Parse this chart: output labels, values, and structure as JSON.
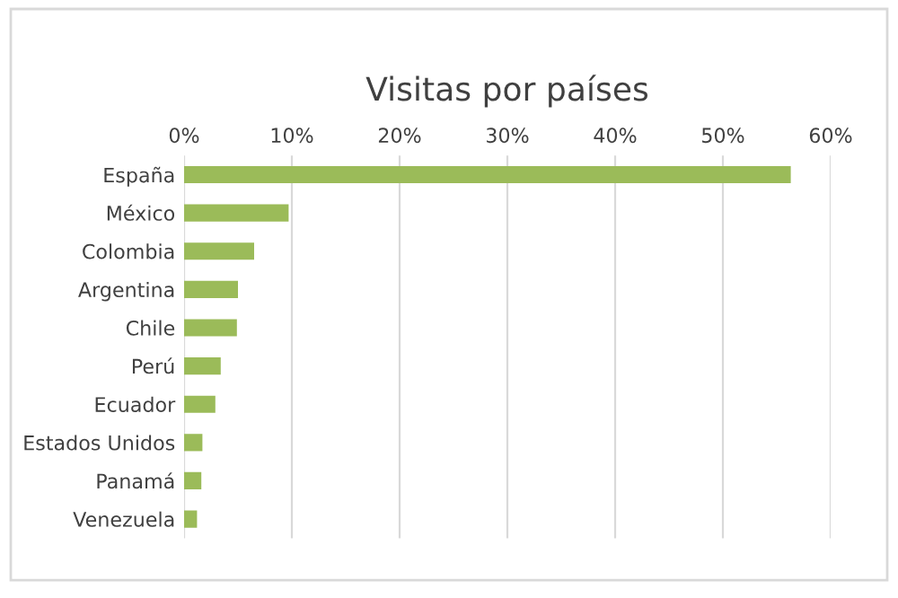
{
  "chart_data": {
    "type": "bar",
    "orientation": "horizontal",
    "title": "Visitas por países",
    "categories": [
      "España",
      "México",
      "Colombia",
      "Argentina",
      "Chile",
      "Perú",
      "Ecuador",
      "Estados Unidos",
      "Panamá",
      "Venezuela"
    ],
    "values": [
      56.3,
      9.7,
      6.5,
      5.0,
      4.9,
      3.4,
      2.9,
      1.7,
      1.6,
      1.2
    ],
    "color": "#9bbb59",
    "xlim": [
      0,
      60
    ],
    "xticks": [
      {
        "value": 0,
        "label": "0%"
      },
      {
        "value": 10,
        "label": "10%"
      },
      {
        "value": 20,
        "label": "20%"
      },
      {
        "value": 30,
        "label": "30%"
      },
      {
        "value": 40,
        "label": "40%"
      },
      {
        "value": 50,
        "label": "50%"
      },
      {
        "value": 60,
        "label": "60%"
      }
    ],
    "grid": "x"
  }
}
